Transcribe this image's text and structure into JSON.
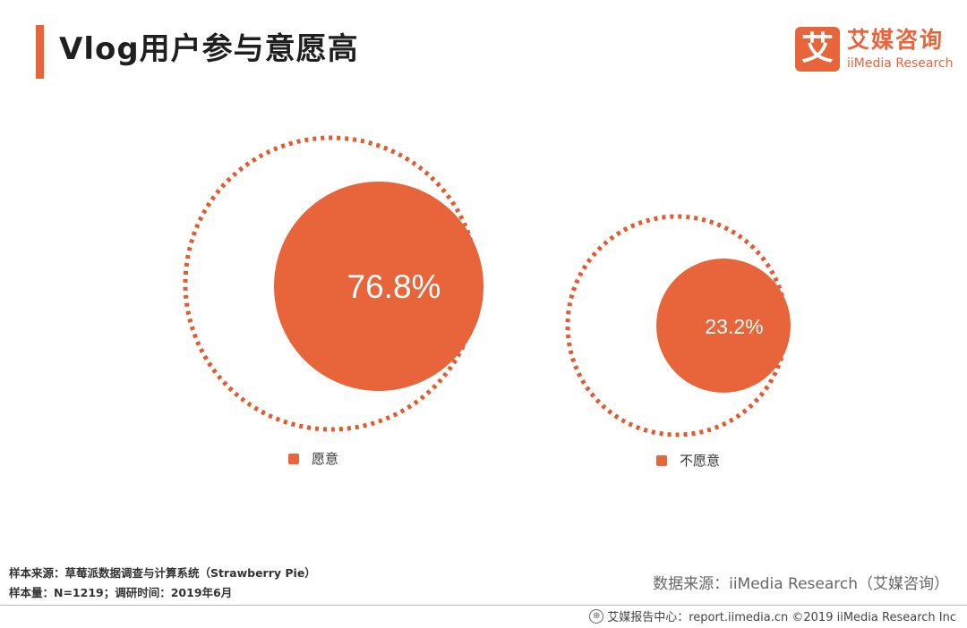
{
  "header": {
    "title": "Vlog用户参与意愿高"
  },
  "logo": {
    "icon_char": "艾",
    "name_cn": "艾媒咨询",
    "name_en": "iiMedia Research"
  },
  "colors": {
    "accent": "#e8643a",
    "dotted": "#e35a2e"
  },
  "chart_data": {
    "type": "bubble",
    "title": "Vlog用户参与意愿高",
    "unit": "%",
    "categories": [
      "愿意",
      "不愿意"
    ],
    "values": [
      76.8,
      23.2
    ],
    "labels": [
      "76.8%",
      "23.2%"
    ],
    "legend": [
      "愿意",
      "不愿意"
    ]
  },
  "sources": {
    "sample_source": "样本来源：草莓派数据调查与计算系统（Strawberry Pie）",
    "sample_size": "样本量：N=1219；调研时间：2019年6月",
    "data_source": "数据来源：iiMedia Research（艾媒咨询）"
  },
  "footer": {
    "text": "艾媒报告中心：report.iimedia.cn  ©2019  iiMedia Research Inc"
  }
}
